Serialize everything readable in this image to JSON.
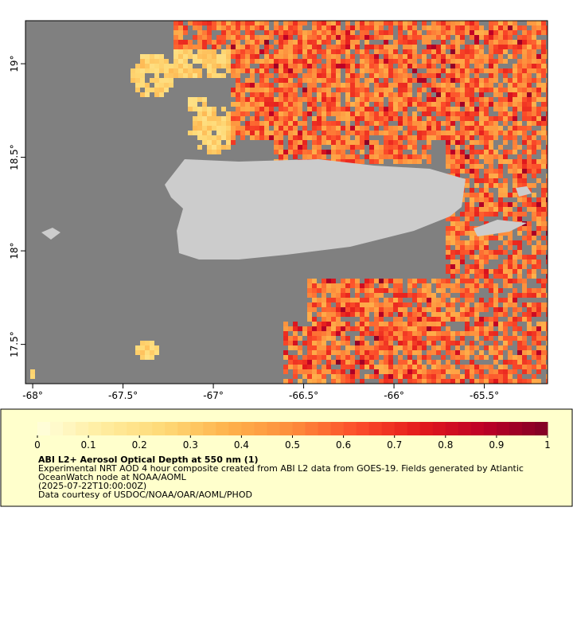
{
  "map": {
    "xlim": [
      -68.04,
      -65.15
    ],
    "ylim": [
      17.29,
      19.23
    ],
    "xticks": [
      {
        "value": -68,
        "label": "-68°"
      },
      {
        "value": -67.5,
        "label": "-67.5°"
      },
      {
        "value": -67,
        "label": "-67°"
      },
      {
        "value": -66.5,
        "label": "-66.5°"
      },
      {
        "value": -66,
        "label": "-66°"
      },
      {
        "value": -65.5,
        "label": "-65.5°"
      }
    ],
    "yticks": [
      {
        "value": 17.5,
        "label": "17.5°"
      },
      {
        "value": 18,
        "label": "18°"
      },
      {
        "value": 18.5,
        "label": "18.5°"
      },
      {
        "value": 19,
        "label": "19°"
      }
    ],
    "background": "#808080",
    "land": "#cccccc"
  },
  "colorbar": {
    "range": [
      0,
      1
    ],
    "ticks": [
      0,
      0.1,
      0.2,
      0.3,
      0.4,
      0.5,
      0.6,
      0.7,
      0.8,
      0.9,
      1
    ],
    "colors": [
      "#ffffdd",
      "#ffeda0",
      "#fed976",
      "#feb24c",
      "#fd8d3c",
      "#fc4e2a",
      "#e31a1c",
      "#bd0026",
      "#800026"
    ],
    "title": "ABI L2+ Aerosol Optical Depth at 550 nm (1)",
    "lines": [
      "Experimental NRT AOD 4 hour composite created from ABI L2 data from GOES-19. Fields generated by Atlantic",
      "OceanWatch node at NOAA/AOML",
      "(2025-07-22T10:00:00Z)",
      "Data courtesy of USDOC/NOAA/OAR/AOML/PHOD"
    ]
  }
}
